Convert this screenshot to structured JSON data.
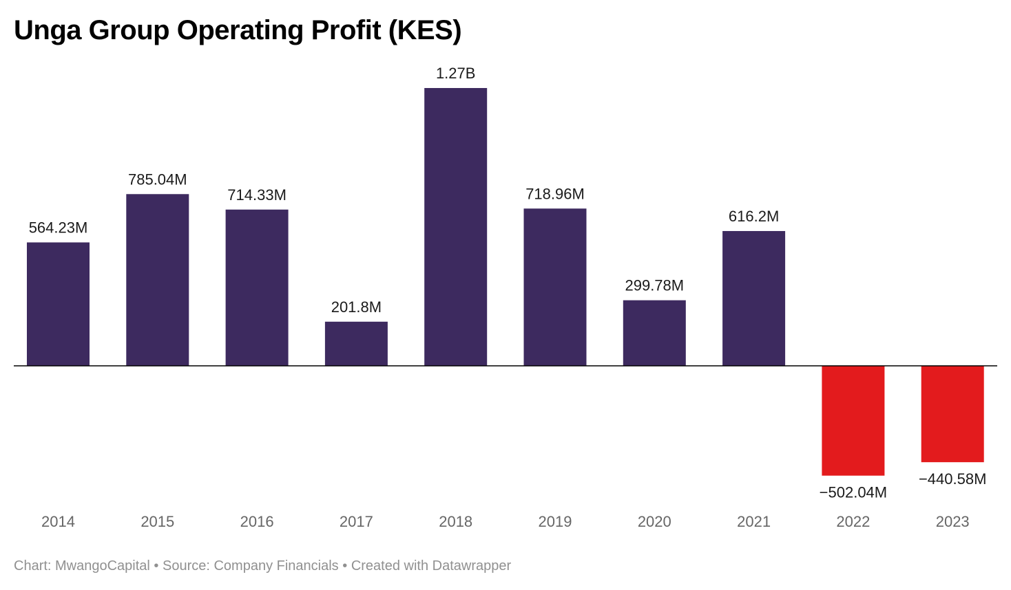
{
  "title": "Unga Group Operating Profit (KES)",
  "footer": {
    "chart": "Chart: MwangoCapital",
    "separator": " • ",
    "source": "Source: Company Financials",
    "created": "Created with Datawrapper"
  },
  "colors": {
    "positive": "#3d2a5f",
    "negative": "#e31b1d",
    "baseline": "#000000",
    "value_label": "#1a1a1a",
    "tick_label": "#666666"
  },
  "chart_data": {
    "type": "bar",
    "title": "Unga Group Operating Profit (KES)",
    "categories": [
      "2014",
      "2015",
      "2016",
      "2017",
      "2018",
      "2019",
      "2020",
      "2021",
      "2022",
      "2023"
    ],
    "values": [
      564230000,
      785040000,
      714330000,
      201800000,
      1270000000,
      718960000,
      299780000,
      616200000,
      -502040000,
      -440580000
    ],
    "value_labels": [
      "564.23M",
      "785.04M",
      "714.33M",
      "201.8M",
      "1.27B",
      "718.96M",
      "299.78M",
      "616.2M",
      "−502.04M",
      "−440.58M"
    ],
    "xlabel": "",
    "ylabel": "",
    "ylim": [
      -502040000,
      1270000000
    ],
    "grid": false,
    "legend": "none"
  }
}
